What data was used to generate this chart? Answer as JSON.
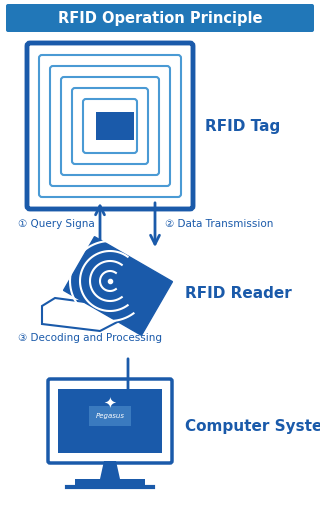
{
  "title": "RFID Operation Principle",
  "title_bg": "#2177b8",
  "title_color": "#ffffff",
  "blue": "#1a5aaa",
  "dark_blue": "#1a3a7a",
  "bg_color": "#ffffff",
  "label_rfid_tag": "RFID Tag",
  "label_rfid_reader": "RFID Reader",
  "label_computer": "Computer System",
  "label_query": "① Query Signa",
  "label_data": "② Data Transmission",
  "label_decoding": "③ Decoding and Processing",
  "figsize": [
    3.2,
    5.16
  ],
  "dpi": 100,
  "xlim": [
    0,
    320
  ],
  "ylim": [
    0,
    516
  ]
}
